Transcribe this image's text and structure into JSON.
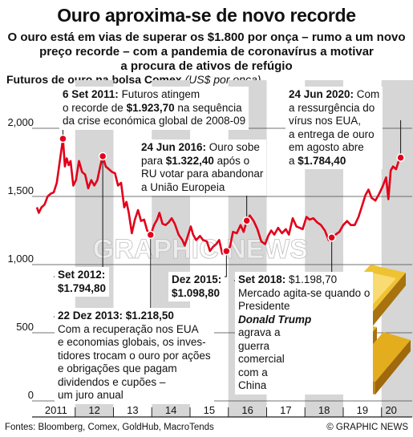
{
  "header": {
    "title": "Ouro aproxima-se de novo recorde",
    "subtitle_lines": [
      "O ouro está em vias de superar os $1.800 por onça – rumo a um novo",
      "preço recorde – com a pandemia de coronavírus a motivar",
      "a procura de ativos de refúgio"
    ]
  },
  "chart_heading": {
    "label": "Futuros de ouro na bolsa Comex",
    "unit": "(US$ por onça)"
  },
  "footer": {
    "sources": "Fontes: Bloomberg, Comex, GoldHub, MacroTends",
    "credit": "© GRAPHIC NEWS"
  },
  "watermark": "GRAPHIC NEWS",
  "colors": {
    "line": "#e2001a",
    "shading": "#d6d6d6",
    "gridline": "#444444",
    "marker": "#e2001a",
    "gold": "#d4a017"
  },
  "illustration": "gold-bars",
  "annotations": [
    {
      "id": "sep2011",
      "lines": [
        "6 Set 2011: Futuros atingem",
        "o recorde de $1.923,70 na sequência",
        "da crise económica global de 2008-09"
      ]
    },
    {
      "id": "sep2012",
      "lines": [
        "Set 2012:",
        "$1.794,80"
      ]
    },
    {
      "id": "dec2013",
      "lines": [
        "22 Dez 2013: $1.218,50",
        "Com a recuperação nos EUA",
        "e economias globais, os inves-",
        "tidores trocam o ouro por ações",
        "e obrigações que pagam",
        "dividendos e cupões –",
        "um juro anual"
      ]
    },
    {
      "id": "dec2015",
      "lines": [
        "Dez 2015:",
        "$1.098,80"
      ]
    },
    {
      "id": "jun2016",
      "lines": [
        "24 Jun 2016: Ouro sobe",
        "para $1.322,40 após o",
        "RU votar para abandonar",
        "a União Europeia"
      ]
    },
    {
      "id": "sep2018",
      "lines": [
        "Set 2018: $1.198,70",
        "Mercado agita-se quando o",
        "Presidente",
        "Donald Trump",
        "agrava a",
        "guerra",
        "comercial",
        "com a",
        "China"
      ]
    },
    {
      "id": "jun2020",
      "lines": [
        "24 Jun 2020: Com",
        "a ressurgência do",
        "vírus nos EUA,",
        "a entrega de ouro",
        "em agosto abre",
        "a $1.784,40"
      ]
    }
  ],
  "chart_data": {
    "type": "line",
    "title": "Futuros de ouro na bolsa Comex",
    "ylabel": "US$ por onça",
    "xlabel": "",
    "ylim": [
      0,
      2000
    ],
    "yticks": [
      0,
      500,
      "1,000",
      "1,500",
      "2,000"
    ],
    "ytick_values": [
      0,
      500,
      1000,
      1500,
      2000
    ],
    "xlim": [
      2011.0,
      2020.55
    ],
    "xtick_labels": [
      "2011",
      "12",
      "13",
      "14",
      "15",
      "16",
      "17",
      "18",
      "19",
      "20"
    ],
    "xtick_positions": [
      2011.5,
      2012.5,
      2013.5,
      2014.5,
      2015.5,
      2016.5,
      2017.5,
      2018.5,
      2019.5,
      2020.25
    ],
    "shaded_years": [
      2012,
      2014,
      2016,
      2018,
      2020
    ],
    "series": [
      {
        "points": [
          [
            2011.0,
            1420
          ],
          [
            2011.05,
            1380
          ],
          [
            2011.12,
            1420
          ],
          [
            2011.2,
            1440
          ],
          [
            2011.28,
            1500
          ],
          [
            2011.36,
            1520
          ],
          [
            2011.44,
            1530
          ],
          [
            2011.52,
            1600
          ],
          [
            2011.6,
            1760
          ],
          [
            2011.68,
            1923.7
          ],
          [
            2011.73,
            1720
          ],
          [
            2011.78,
            1780
          ],
          [
            2011.83,
            1730
          ],
          [
            2011.88,
            1760
          ],
          [
            2011.95,
            1580
          ],
          [
            2012.02,
            1620
          ],
          [
            2012.1,
            1760
          ],
          [
            2012.18,
            1680
          ],
          [
            2012.26,
            1660
          ],
          [
            2012.34,
            1560
          ],
          [
            2012.42,
            1620
          ],
          [
            2012.5,
            1580
          ],
          [
            2012.58,
            1620
          ],
          [
            2012.66,
            1730
          ],
          [
            2012.72,
            1794.8
          ],
          [
            2012.8,
            1720
          ],
          [
            2012.88,
            1700
          ],
          [
            2012.96,
            1680
          ],
          [
            2013.04,
            1670
          ],
          [
            2013.12,
            1580
          ],
          [
            2013.2,
            1600
          ],
          [
            2013.28,
            1420
          ],
          [
            2013.34,
            1460
          ],
          [
            2013.4,
            1380
          ],
          [
            2013.48,
            1230
          ],
          [
            2013.56,
            1330
          ],
          [
            2013.64,
            1400
          ],
          [
            2013.72,
            1320
          ],
          [
            2013.8,
            1330
          ],
          [
            2013.88,
            1250
          ],
          [
            2013.97,
            1218.5
          ],
          [
            2014.06,
            1290
          ],
          [
            2014.14,
            1330
          ],
          [
            2014.2,
            1380
          ],
          [
            2014.28,
            1300
          ],
          [
            2014.36,
            1290
          ],
          [
            2014.44,
            1310
          ],
          [
            2014.52,
            1340
          ],
          [
            2014.6,
            1300
          ],
          [
            2014.7,
            1220
          ],
          [
            2014.8,
            1180
          ],
          [
            2014.86,
            1140
          ],
          [
            2014.93,
            1200
          ],
          [
            2015.02,
            1280
          ],
          [
            2015.08,
            1220
          ],
          [
            2015.16,
            1180
          ],
          [
            2015.26,
            1210
          ],
          [
            2015.34,
            1180
          ],
          [
            2015.44,
            1170
          ],
          [
            2015.52,
            1100
          ],
          [
            2015.6,
            1130
          ],
          [
            2015.68,
            1150
          ],
          [
            2015.76,
            1180
          ],
          [
            2015.84,
            1080
          ],
          [
            2015.95,
            1098.8
          ],
          [
            2016.04,
            1130
          ],
          [
            2016.12,
            1240
          ],
          [
            2016.22,
            1230
          ],
          [
            2016.32,
            1290
          ],
          [
            2016.4,
            1240
          ],
          [
            2016.48,
            1322.4
          ],
          [
            2016.56,
            1360
          ],
          [
            2016.66,
            1320
          ],
          [
            2016.76,
            1260
          ],
          [
            2016.86,
            1170
          ],
          [
            2016.96,
            1150
          ],
          [
            2017.04,
            1210
          ],
          [
            2017.12,
            1250
          ],
          [
            2017.2,
            1220
          ],
          [
            2017.3,
            1270
          ],
          [
            2017.4,
            1230
          ],
          [
            2017.5,
            1260
          ],
          [
            2017.58,
            1220
          ],
          [
            2017.68,
            1340
          ],
          [
            2017.78,
            1280
          ],
          [
            2017.86,
            1270
          ],
          [
            2017.94,
            1260
          ],
          [
            2018.04,
            1350
          ],
          [
            2018.12,
            1330
          ],
          [
            2018.22,
            1340
          ],
          [
            2018.32,
            1310
          ],
          [
            2018.42,
            1290
          ],
          [
            2018.52,
            1250
          ],
          [
            2018.62,
            1180
          ],
          [
            2018.7,
            1198.7
          ],
          [
            2018.8,
            1220
          ],
          [
            2018.9,
            1240
          ],
          [
            2019.0,
            1290
          ],
          [
            2019.1,
            1320
          ],
          [
            2019.2,
            1290
          ],
          [
            2019.3,
            1290
          ],
          [
            2019.4,
            1350
          ],
          [
            2019.48,
            1420
          ],
          [
            2019.58,
            1510
          ],
          [
            2019.66,
            1550
          ],
          [
            2019.74,
            1490
          ],
          [
            2019.84,
            1470
          ],
          [
            2019.94,
            1520
          ],
          [
            2020.04,
            1580
          ],
          [
            2020.12,
            1640
          ],
          [
            2020.18,
            1480
          ],
          [
            2020.24,
            1690
          ],
          [
            2020.3,
            1720
          ],
          [
            2020.38,
            1700
          ],
          [
            2020.46,
            1770
          ],
          [
            2020.5,
            1784.4
          ],
          [
            2020.53,
            1800
          ]
        ]
      }
    ],
    "annotated_points": [
      {
        "x": 2011.68,
        "y": 1923.7
      },
      {
        "x": 2012.72,
        "y": 1794.8
      },
      {
        "x": 2013.97,
        "y": 1218.5
      },
      {
        "x": 2015.95,
        "y": 1098.8
      },
      {
        "x": 2016.48,
        "y": 1322.4
      },
      {
        "x": 2018.7,
        "y": 1198.7
      },
      {
        "x": 2020.5,
        "y": 1784.4
      }
    ]
  }
}
